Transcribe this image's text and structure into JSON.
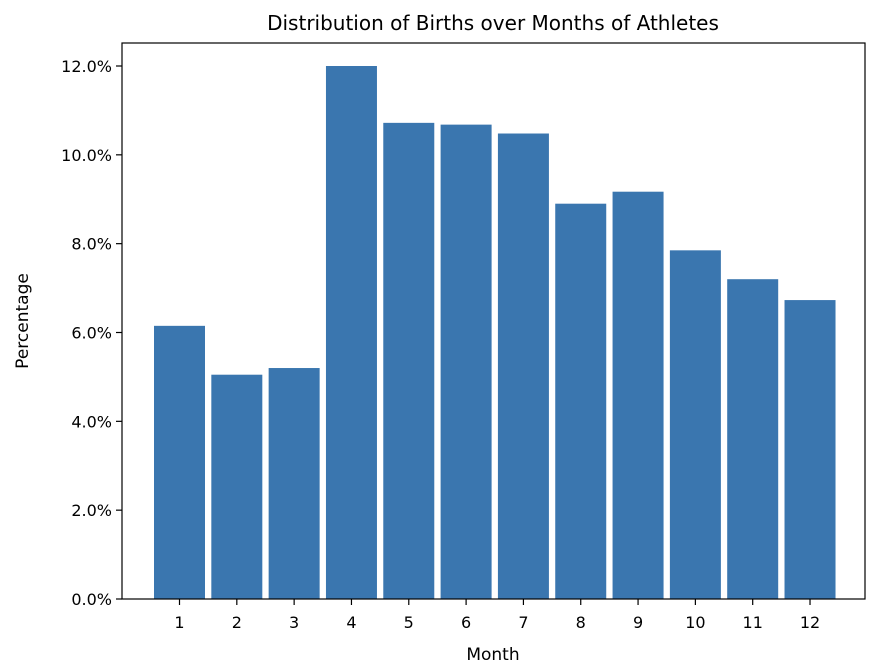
{
  "chart_data": {
    "type": "bar",
    "title": "Distribution of Births over Months of Athletes",
    "xlabel": "Month",
    "ylabel": "Percentage",
    "categories": [
      "1",
      "2",
      "3",
      "4",
      "5",
      "6",
      "7",
      "8",
      "9",
      "10",
      "11",
      "12"
    ],
    "values": [
      6.15,
      5.05,
      5.2,
      12.0,
      10.72,
      10.68,
      10.48,
      8.9,
      9.17,
      7.85,
      7.2,
      6.73
    ],
    "ylim": [
      0,
      12.5
    ],
    "yticks": [
      "0.0%",
      "2.0%",
      "4.0%",
      "6.0%",
      "8.0%",
      "10.0%",
      "12.0%"
    ],
    "ytick_values": [
      0,
      2,
      4,
      6,
      8,
      10,
      12
    ],
    "bar_color": "#3a76af",
    "grid": false,
    "legend": "none"
  }
}
